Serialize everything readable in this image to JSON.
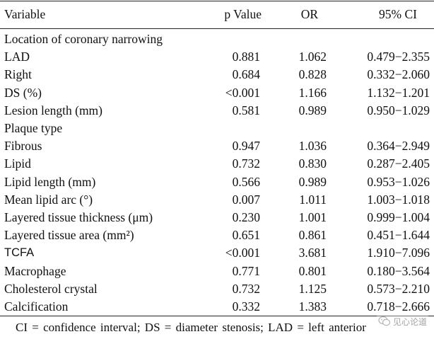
{
  "table": {
    "headers": {
      "variable": "Variable",
      "p_value": "p Value",
      "or": "OR",
      "ci": "95% CI"
    },
    "rows": [
      {
        "variable": "Location of coronary narrowing",
        "p": "",
        "or": "",
        "ci": "",
        "type": "section"
      },
      {
        "variable": "LAD",
        "p": "0.881",
        "or": "1.062",
        "ci": "0.479−2.355",
        "type": "data"
      },
      {
        "variable": "Right",
        "p": "0.684",
        "or": "0.828",
        "ci": "0.332−2.060",
        "type": "data"
      },
      {
        "variable": "DS (%)",
        "p": "<0.001",
        "or": "1.166",
        "ci": "1.132−1.201",
        "type": "data"
      },
      {
        "variable": "Lesion length (mm)",
        "p": "0.581",
        "or": "0.989",
        "ci": "0.950−1.029",
        "type": "data"
      },
      {
        "variable": "Plaque type",
        "p": "",
        "or": "",
        "ci": "",
        "type": "section"
      },
      {
        "variable": "Fibrous",
        "p": "0.947",
        "or": "1.036",
        "ci": "0.364−2.949",
        "type": "data"
      },
      {
        "variable": "Lipid",
        "p": "0.732",
        "or": "0.830",
        "ci": "0.287−2.405",
        "type": "data"
      },
      {
        "variable": "Lipid length (mm)",
        "p": "0.566",
        "or": "0.989",
        "ci": "0.953−1.026",
        "type": "data"
      },
      {
        "variable": "Mean lipid arc (°)",
        "p": "0.007",
        "or": "1.011",
        "ci": "1.003−1.018",
        "type": "data"
      },
      {
        "variable": "Layered tissue thickness (μm)",
        "p": "0.230",
        "or": "1.001",
        "ci": "0.999−1.004",
        "type": "data"
      },
      {
        "variable": "Layered tissue area (mm²)",
        "p": "0.651",
        "or": "0.861",
        "ci": "0.451−1.644",
        "type": "data"
      },
      {
        "variable": "TCFA",
        "p": "<0.001",
        "or": "3.681",
        "ci": "1.910−7.096",
        "type": "data",
        "sans": true
      },
      {
        "variable": "Macrophage",
        "p": "0.771",
        "or": "0.801",
        "ci": "0.180−3.564",
        "type": "data"
      },
      {
        "variable": "Cholesterol crystal",
        "p": "0.732",
        "or": "1.125",
        "ci": "0.573−2.210",
        "type": "data"
      },
      {
        "variable": "Calcification",
        "p": "0.332",
        "or": "1.383",
        "ci": "0.718−2.666",
        "type": "data"
      }
    ]
  },
  "footnote": "CI = confidence interval; DS = diameter stenosis; LAD = left anterior",
  "watermark": {
    "text": "见心论道",
    "icon": "wechat-logo-icon"
  }
}
